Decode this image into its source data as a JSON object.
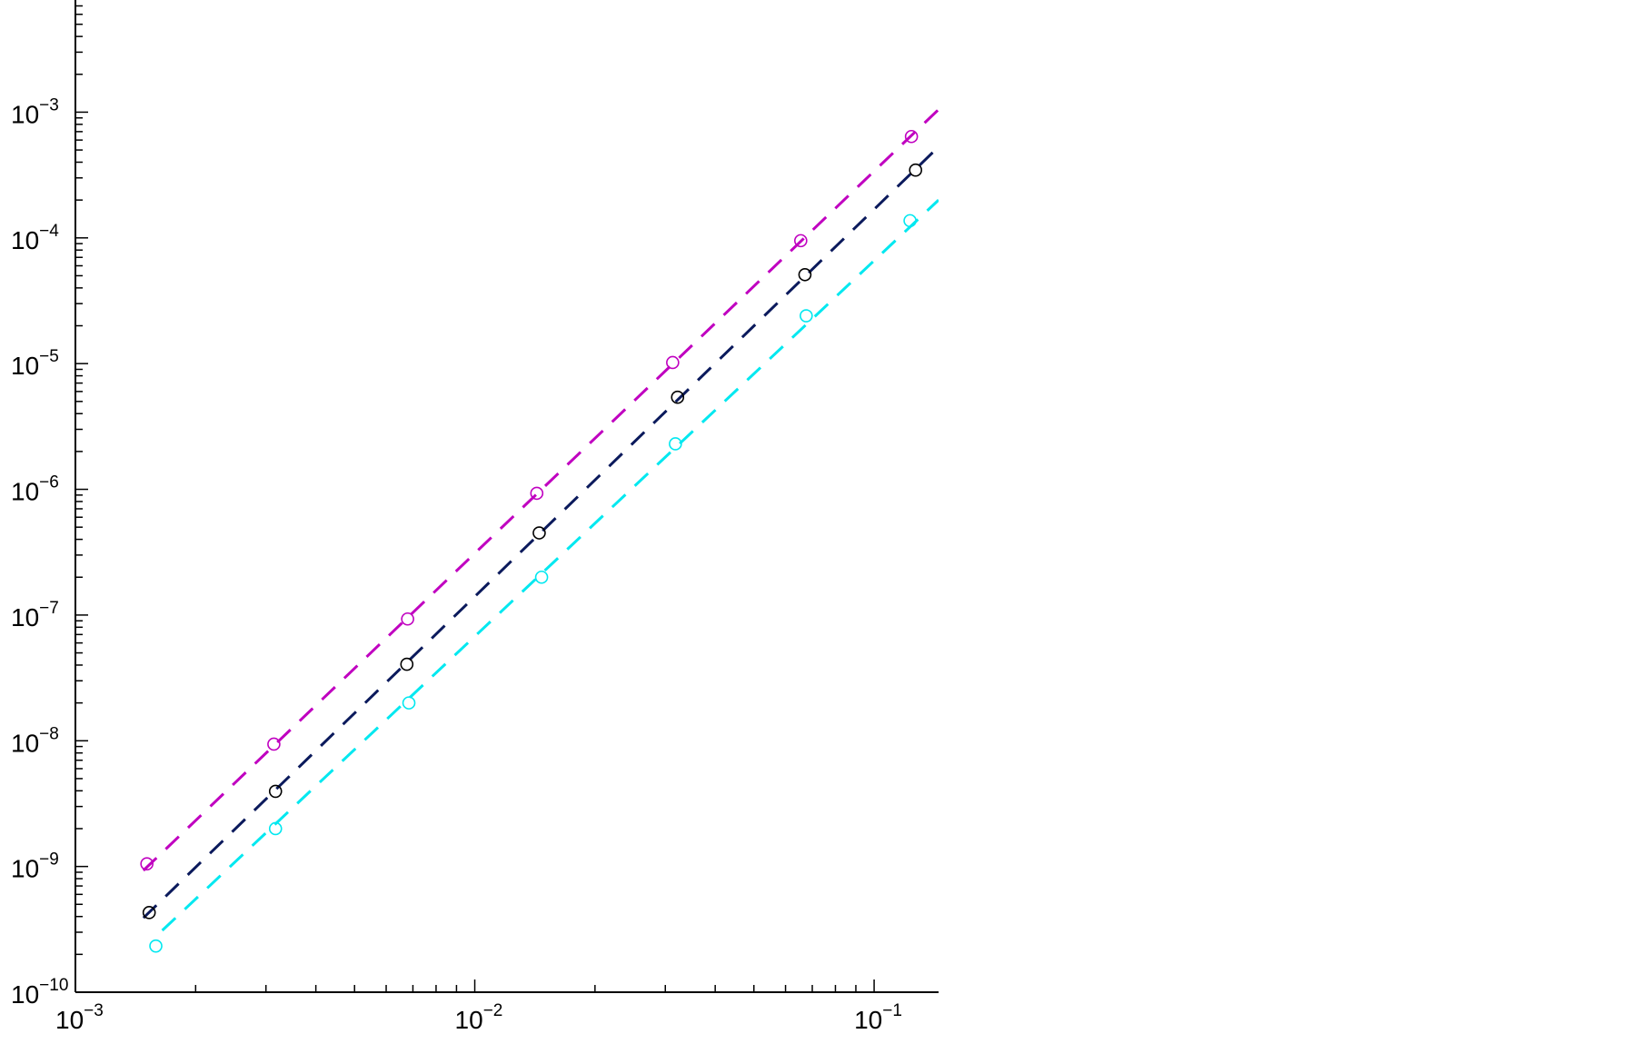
{
  "chart_data": {
    "type": "line",
    "title": "",
    "xlabel": "",
    "ylabel": "",
    "xscale": "log",
    "yscale": "log",
    "xlim": [
      0.001,
      0.145
    ],
    "ylim": [
      1e-10,
      0.0078
    ],
    "grid": false,
    "legend": "none",
    "x_ticks": [
      {
        "value": 0.001,
        "base": "10",
        "exp": "−3"
      },
      {
        "value": 0.01,
        "base": "10",
        "exp": "−2"
      },
      {
        "value": 0.1,
        "base": "10",
        "exp": "−1"
      }
    ],
    "y_ticks": [
      {
        "value": 1e-10,
        "base": "10",
        "exp": "−10"
      },
      {
        "value": 1e-09,
        "base": "10",
        "exp": "−9"
      },
      {
        "value": 1e-08,
        "base": "10",
        "exp": "−8"
      },
      {
        "value": 1e-07,
        "base": "10",
        "exp": "−7"
      },
      {
        "value": 1e-06,
        "base": "10",
        "exp": "−6"
      },
      {
        "value": 1e-05,
        "base": "10",
        "exp": "−5"
      },
      {
        "value": 0.0001,
        "base": "10",
        "exp": "−4"
      },
      {
        "value": 0.001,
        "base": "10",
        "exp": "−3"
      }
    ],
    "series": [
      {
        "color": "#c000c0",
        "marker_color": "#c000c0",
        "line_style": "dashed",
        "marker": "circle",
        "points": {
          "x": [
            0.00151,
            0.00314,
            0.00679,
            0.0143,
            0.0313,
            0.0655,
            0.124
          ],
          "y": [
            1.05e-09,
            9.4e-09,
            9.3e-08,
            9.3e-07,
            1.02e-05,
            9.5e-05,
            0.00064
          ]
        },
        "line": {
          "x": [
            0.00148,
            0.145
          ],
          "y": [
            9.3e-10,
            0.00105
          ]
        }
      },
      {
        "color": "#0b1a5c",
        "marker_color": "#000000",
        "line_style": "dashed",
        "marker": "circle",
        "points": {
          "x": [
            0.00153,
            0.00317,
            0.00676,
            0.0145,
            0.0322,
            0.0671,
            0.127
          ],
          "y": [
            4.3e-10,
            3.96e-09,
            4.06e-08,
            4.5e-07,
            5.4e-06,
            5.1e-05,
            0.000346
          ]
        },
        "line": {
          "x": [
            0.00148,
            0.145
          ],
          "y": [
            3.9e-10,
            0.00053
          ]
        }
      },
      {
        "color": "#00e8f0",
        "marker_color": "#00e8f0",
        "line_style": "dashed",
        "marker": "circle",
        "points": {
          "x": [
            0.00159,
            0.00317,
            0.00684,
            0.0147,
            0.0318,
            0.0676,
            0.123
          ],
          "y": [
            2.33e-10,
            2e-09,
            2e-08,
            2e-07,
            2.3e-06,
            2.4e-05,
            0.000137
          ]
        },
        "line": {
          "x": [
            0.00165,
            0.145
          ],
          "y": [
            3.1e-10,
            0.0002
          ]
        }
      }
    ]
  }
}
